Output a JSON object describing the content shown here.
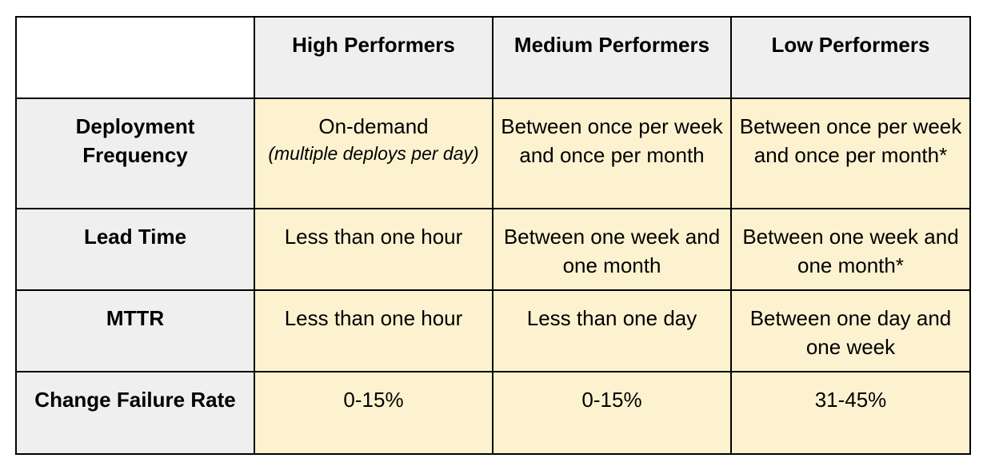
{
  "table": {
    "corner": "",
    "columns": [
      "High Performers",
      "Medium Performers",
      "Low Performers"
    ],
    "rows": [
      {
        "label": "Deployment Frequency",
        "cells": [
          {
            "text": "On-demand",
            "sub": "(multiple deploys per day)"
          },
          {
            "text": "Between once per week and once per month"
          },
          {
            "text": "Between once per week and once per month*"
          }
        ]
      },
      {
        "label": "Lead Time",
        "cells": [
          {
            "text": "Less than one hour"
          },
          {
            "text": "Between one week and one month"
          },
          {
            "text": "Between one week and one month*"
          }
        ]
      },
      {
        "label": "MTTR",
        "cells": [
          {
            "text": "Less than one hour"
          },
          {
            "text": "Less than one day"
          },
          {
            "text": "Between one day and one week"
          }
        ]
      },
      {
        "label": "Change Failure Rate",
        "cells": [
          {
            "text": "0-15%"
          },
          {
            "text": "0-15%"
          },
          {
            "text": "31-45%"
          }
        ]
      }
    ]
  },
  "colors": {
    "header_bg": "#efefef",
    "cell_bg": "#fdf2d0",
    "border": "#000000"
  }
}
